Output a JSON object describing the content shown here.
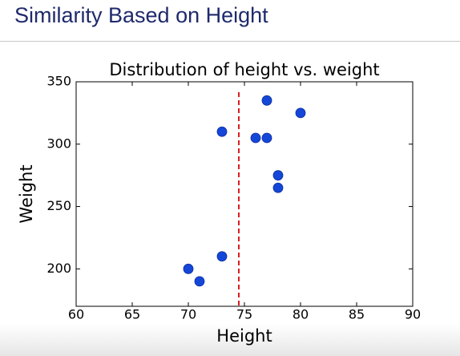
{
  "slide_title": "Similarity Based on Height",
  "chart_data": {
    "type": "scatter",
    "title": "Distribution of height vs. weight",
    "x_label": "Height",
    "y_label": "Weight",
    "x": [
      70,
      71,
      73,
      73,
      76,
      77,
      77,
      78,
      78,
      80
    ],
    "series": [
      {
        "color": "#1447d8",
        "values": [
          200,
          190,
          210,
          310,
          305,
          305,
          335,
          275,
          265,
          325
        ]
      }
    ],
    "xlim": [
      60,
      90
    ],
    "xticks": [
      60,
      65,
      70,
      75,
      80,
      85,
      90
    ],
    "ylim": [
      170,
      350
    ],
    "yticks": [
      200,
      250,
      300,
      350
    ],
    "vline": {
      "x": 74.5,
      "color": "#d62020"
    }
  }
}
